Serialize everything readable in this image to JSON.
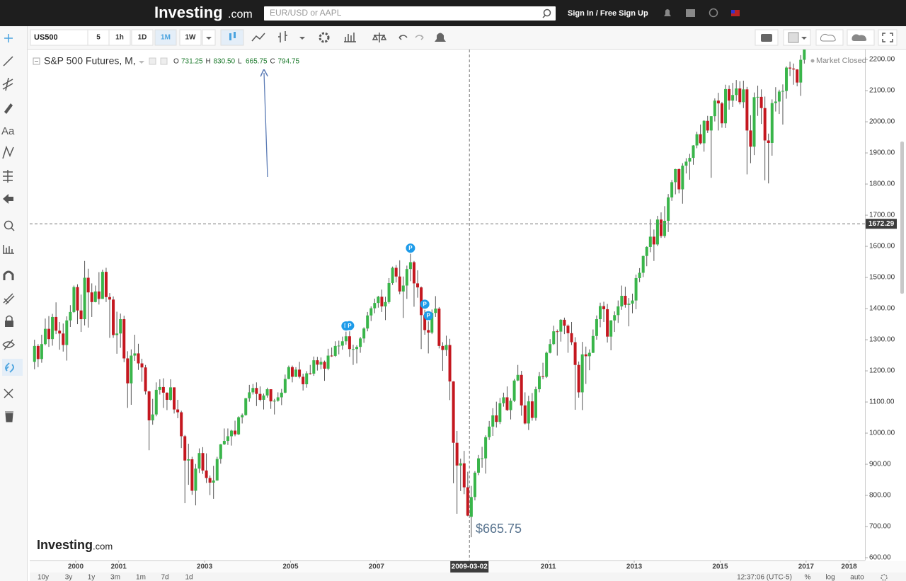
{
  "header": {
    "logo": "Investing",
    "logo_suffix": ".com",
    "search_placeholder": "EUR/USD or AAPL",
    "sign_in": "Sign In / Free Sign Up"
  },
  "toolbar": {
    "symbol": "US500",
    "intervals": [
      "5",
      "1h",
      "1D",
      "1M",
      "1W"
    ],
    "selected_interval": "1M"
  },
  "sidebar": {
    "text_tool": "Aa"
  },
  "chart_data": {
    "type": "candlestick",
    "title": "S&P 500 Futures, M,",
    "ohlc_legend": [
      {
        "key": "O",
        "value": "731.25"
      },
      {
        "key": "H",
        "value": "830.50"
      },
      {
        "key": "L",
        "value": "665.75"
      },
      {
        "key": "C",
        "value": "794.75"
      }
    ],
    "status": "Market Closed",
    "watermark": {
      "brand": "Investing",
      "suffix": ".com"
    },
    "up_color": "#39b54a",
    "down_color": "#c4171f",
    "grid": false,
    "x": [
      "1999-01",
      "1999-02",
      "1999-03",
      "1999-04",
      "1999-05",
      "1999-06",
      "1999-07",
      "1999-08",
      "1999-09",
      "1999-10",
      "1999-11",
      "1999-12",
      "2000-01",
      "2000-02",
      "2000-03",
      "2000-04",
      "2000-05",
      "2000-06",
      "2000-07",
      "2000-08",
      "2000-09",
      "2000-10",
      "2000-11",
      "2000-12",
      "2001-01",
      "2001-02",
      "2001-03",
      "2001-04",
      "2001-05",
      "2001-06",
      "2001-07",
      "2001-08",
      "2001-09",
      "2001-10",
      "2001-11",
      "2001-12",
      "2002-01",
      "2002-02",
      "2002-03",
      "2002-04",
      "2002-05",
      "2002-06",
      "2002-07",
      "2002-08",
      "2002-09",
      "2002-10",
      "2002-11",
      "2002-12",
      "2003-01",
      "2003-02",
      "2003-03",
      "2003-04",
      "2003-05",
      "2003-06",
      "2003-07",
      "2003-08",
      "2003-09",
      "2003-10",
      "2003-11",
      "2003-12",
      "2004-01",
      "2004-02",
      "2004-03",
      "2004-04",
      "2004-05",
      "2004-06",
      "2004-07",
      "2004-08",
      "2004-09",
      "2004-10",
      "2004-11",
      "2004-12",
      "2005-01",
      "2005-02",
      "2005-03",
      "2005-04",
      "2005-05",
      "2005-06",
      "2005-07",
      "2005-08",
      "2005-09",
      "2005-10",
      "2005-11",
      "2005-12",
      "2006-01",
      "2006-02",
      "2006-03",
      "2006-04",
      "2006-05",
      "2006-06",
      "2006-07",
      "2006-08",
      "2006-09",
      "2006-10",
      "2006-11",
      "2006-12",
      "2007-01",
      "2007-02",
      "2007-03",
      "2007-04",
      "2007-05",
      "2007-06",
      "2007-07",
      "2007-08",
      "2007-09",
      "2007-10",
      "2007-11",
      "2007-12",
      "2008-01",
      "2008-02",
      "2008-03",
      "2008-04",
      "2008-05",
      "2008-06",
      "2008-07",
      "2008-08",
      "2008-09",
      "2008-10",
      "2008-11",
      "2008-12",
      "2009-01",
      "2009-02",
      "2009-03",
      "2009-04",
      "2009-05",
      "2009-06",
      "2009-07",
      "2009-08",
      "2009-09",
      "2009-10",
      "2009-11",
      "2009-12",
      "2010-01",
      "2010-02",
      "2010-03",
      "2010-04",
      "2010-05",
      "2010-06",
      "2010-07",
      "2010-08",
      "2010-09",
      "2010-10",
      "2010-11",
      "2010-12",
      "2011-01",
      "2011-02",
      "2011-03",
      "2011-04",
      "2011-05",
      "2011-06",
      "2011-07",
      "2011-08",
      "2011-09",
      "2011-10",
      "2011-11",
      "2011-12",
      "2012-01",
      "2012-02",
      "2012-03",
      "2012-04",
      "2012-05",
      "2012-06",
      "2012-07",
      "2012-08",
      "2012-09",
      "2012-10",
      "2012-11",
      "2012-12",
      "2013-01",
      "2013-02",
      "2013-03",
      "2013-04",
      "2013-05",
      "2013-06",
      "2013-07",
      "2013-08",
      "2013-09",
      "2013-10",
      "2013-11",
      "2013-12",
      "2014-01",
      "2014-02",
      "2014-03",
      "2014-04",
      "2014-05",
      "2014-06",
      "2014-07",
      "2014-08",
      "2014-09",
      "2014-10",
      "2014-11",
      "2014-12",
      "2015-01",
      "2015-02",
      "2015-03",
      "2015-04",
      "2015-05",
      "2015-06",
      "2015-07",
      "2015-08",
      "2015-09",
      "2015-10",
      "2015-11",
      "2015-12",
      "2016-01",
      "2016-02",
      "2016-03",
      "2016-04",
      "2016-05",
      "2016-06",
      "2016-07",
      "2016-08",
      "2016-09",
      "2016-10",
      "2016-11",
      "2016-12"
    ],
    "open": [
      1229,
      1280,
      1238,
      1286,
      1335,
      1302,
      1373,
      1329,
      1320,
      1283,
      1362,
      1389,
      1469,
      1394,
      1366,
      1499,
      1452,
      1421,
      1455,
      1431,
      1518,
      1437,
      1429,
      1315,
      1320,
      1366,
      1240,
      1160,
      1249,
      1256,
      1224,
      1211,
      1134,
      1041,
      1060,
      1139,
      1148,
      1130,
      1107,
      1147,
      1076,
      1067,
      990,
      912,
      916,
      815,
      886,
      936,
      880,
      856,
      841,
      848,
      917,
      964,
      975,
      990,
      1008,
      996,
      1051,
      1058,
      1112,
      1131,
      1145,
      1126,
      1107,
      1121,
      1141,
      1102,
      1104,
      1115,
      1130,
      1174,
      1212,
      1181,
      1204,
      1181,
      1157,
      1192,
      1191,
      1234,
      1220,
      1229,
      1207,
      1249,
      1248,
      1280,
      1281,
      1295,
      1311,
      1270,
      1270,
      1277,
      1304,
      1336,
      1378,
      1401,
      1418,
      1438,
      1407,
      1421,
      1482,
      1531,
      1503,
      1455,
      1474,
      1527,
      1549,
      1481,
      1468,
      1379,
      1331,
      1323,
      1386,
      1400,
      1280,
      1267,
      1283,
      1166,
      969,
      896,
      903,
      826,
      731.25,
      795,
      873,
      919,
      919,
      987,
      1021,
      1057,
      1036,
      1096,
      1115,
      1074,
      1104,
      1169,
      1187,
      1089,
      1031,
      1102,
      1049,
      1141,
      1183,
      1181,
      1258,
      1286,
      1327,
      1326,
      1364,
      1345,
      1321,
      1292,
      1219,
      1131,
      1253,
      1247,
      1258,
      1312,
      1366,
      1408,
      1398,
      1310,
      1362,
      1379,
      1407,
      1441,
      1412,
      1416,
      1426,
      1498,
      1515,
      1569,
      1598,
      1631,
      1606,
      1686,
      1633,
      1682,
      1757,
      1806,
      1848,
      1783,
      1859,
      1872,
      1884,
      1924,
      1960,
      1931,
      2003,
      1972,
      2018,
      2068,
      2059,
      1995,
      2105,
      2068,
      2086,
      2107,
      2063,
      2104,
      1972,
      1920,
      2079,
      2080,
      2044,
      1940,
      1932,
      2060,
      2065,
      2097,
      2099,
      2174,
      2171,
      2168,
      2126,
      2199
    ],
    "high": [
      1300,
      1286,
      1316,
      1368,
      1376,
      1383,
      1420,
      1357,
      1352,
      1375,
      1411,
      1474,
      1478,
      1445,
      1553,
      1528,
      1481,
      1474,
      1517,
      1525,
      1531,
      1450,
      1439,
      1390,
      1384,
      1377,
      1263,
      1269,
      1316,
      1287,
      1239,
      1219,
      1136,
      1110,
      1163,
      1173,
      1176,
      1131,
      1173,
      1147,
      1107,
      1072,
      994,
      966,
      924,
      901,
      951,
      955,
      935,
      864,
      895,
      924,
      965,
      1015,
      1015,
      1011,
      1040,
      1054,
      1063,
      1113,
      1155,
      1158,
      1163,
      1150,
      1127,
      1146,
      1141,
      1110,
      1131,
      1142,
      1188,
      1217,
      1217,
      1212,
      1229,
      1191,
      1199,
      1219,
      1246,
      1245,
      1243,
      1233,
      1271,
      1275,
      1295,
      1297,
      1310,
      1326,
      1327,
      1284,
      1282,
      1309,
      1340,
      1389,
      1407,
      1432,
      1441,
      1461,
      1438,
      1498,
      1535,
      1540,
      1555,
      1503,
      1538,
      1576,
      1553,
      1523,
      1471,
      1396,
      1359,
      1397,
      1440,
      1405,
      1292,
      1313,
      1303,
      1167,
      1007,
      918,
      943,
      876,
      830.5,
      878,
      930,
      956,
      993,
      1039,
      1080,
      1101,
      1113,
      1130,
      1150,
      1112,
      1174,
      1219,
      1200,
      1131,
      1120,
      1129,
      1149,
      1196,
      1226,
      1262,
      1302,
      1345,
      1333,
      1366,
      1371,
      1349,
      1357,
      1308,
      1230,
      1293,
      1278,
      1269,
      1333,
      1378,
      1419,
      1422,
      1415,
      1363,
      1391,
      1426,
      1474,
      1470,
      1434,
      1448,
      1509,
      1530,
      1570,
      1600,
      1687,
      1654,
      1698,
      1709,
      1729,
      1768,
      1813,
      1849,
      1850,
      1867,
      1883,
      1897,
      1925,
      1968,
      1991,
      2005,
      2019,
      2018,
      2075,
      2093,
      2064,
      2119,
      2117,
      2125,
      2134,
      2130,
      2132,
      2112,
      2021,
      2094,
      2116,
      2104,
      2081,
      1962,
      2072,
      2111,
      2103,
      2120,
      2178,
      2193,
      2187,
      2169,
      2214,
      2277
    ],
    "low": [
      1205,
      1212,
      1226,
      1282,
      1277,
      1281,
      1318,
      1268,
      1262,
      1233,
      1341,
      1386,
      1350,
      1325,
      1346,
      1339,
      1373,
      1420,
      1413,
      1431,
      1421,
      1306,
      1306,
      1255,
      1274,
      1228,
      1081,
      1091,
      1232,
      1203,
      1165,
      1124,
      945,
      1027,
      1054,
      1124,
      1081,
      1074,
      1104,
      1063,
      1048,
      952,
      775,
      834,
      802,
      768,
      872,
      869,
      840,
      801,
      789,
      847,
      902,
      962,
      962,
      960,
      990,
      994,
      1031,
      1056,
      1101,
      1124,
      1087,
      1102,
      1076,
      1114,
      1078,
      1060,
      1101,
      1090,
      1128,
      1173,
      1163,
      1180,
      1176,
      1137,
      1146,
      1188,
      1184,
      1201,
      1205,
      1168,
      1202,
      1245,
      1245,
      1253,
      1268,
      1284,
      1245,
      1219,
      1224,
      1258,
      1290,
      1327,
      1360,
      1385,
      1403,
      1389,
      1363,
      1416,
      1476,
      1484,
      1446,
      1370,
      1431,
      1488,
      1406,
      1435,
      1270,
      1316,
      1256,
      1318,
      1373,
      1272,
      1200,
      1248,
      1106,
      839,
      741,
      814,
      804,
      733,
      665.75,
      784,
      865,
      889,
      870,
      978,
      991,
      1018,
      1029,
      1085,
      1071,
      1044,
      1100,
      1167,
      1056,
      1028,
      1010,
      1040,
      1040,
      1131,
      1173,
      1177,
      1256,
      1283,
      1249,
      1294,
      1318,
      1258,
      1283,
      1075,
      1114,
      1074,
      1158,
      1202,
      1257,
      1300,
      1340,
      1357,
      1291,
      1266,
      1325,
      1354,
      1396,
      1403,
      1343,
      1385,
      1398,
      1485,
      1501,
      1536,
      1581,
      1553,
      1601,
      1627,
      1627,
      1646,
      1746,
      1767,
      1770,
      1737,
      1834,
      1814,
      1862,
      1915,
      1927,
      1904,
      1964,
      1820,
      2001,
      1972,
      1981,
      1980,
      2039,
      2048,
      2067,
      2056,
      2044,
      1831,
      1867,
      1893,
      2019,
      1993,
      1812,
      1802,
      1891,
      2033,
      2025,
      1991,
      2074,
      2147,
      2119,
      2114,
      2083,
      2187
    ],
    "close": [
      1280,
      1238,
      1286,
      1335,
      1302,
      1373,
      1329,
      1320,
      1283,
      1362,
      1389,
      1469,
      1394,
      1366,
      1499,
      1452,
      1421,
      1455,
      1431,
      1518,
      1437,
      1429,
      1315,
      1320,
      1366,
      1240,
      1160,
      1249,
      1256,
      1224,
      1211,
      1134,
      1041,
      1060,
      1139,
      1148,
      1130,
      1107,
      1147,
      1076,
      1067,
      990,
      912,
      916,
      815,
      886,
      936,
      880,
      856,
      841,
      848,
      917,
      964,
      975,
      990,
      1008,
      996,
      1051,
      1058,
      1112,
      1131,
      1145,
      1126,
      1107,
      1121,
      1141,
      1102,
      1104,
      1115,
      1130,
      1174,
      1212,
      1181,
      1204,
      1181,
      1157,
      1192,
      1191,
      1234,
      1220,
      1229,
      1207,
      1249,
      1248,
      1280,
      1281,
      1295,
      1311,
      1270,
      1270,
      1277,
      1304,
      1336,
      1378,
      1401,
      1418,
      1438,
      1407,
      1421,
      1482,
      1531,
      1503,
      1455,
      1474,
      1527,
      1549,
      1481,
      1468,
      1379,
      1331,
      1323,
      1386,
      1400,
      1280,
      1267,
      1283,
      1166,
      969,
      896,
      903,
      826,
      735,
      794.75,
      873,
      919,
      919,
      987,
      1021,
      1057,
      1036,
      1096,
      1115,
      1074,
      1104,
      1169,
      1187,
      1089,
      1031,
      1102,
      1049,
      1141,
      1183,
      1181,
      1258,
      1286,
      1327,
      1326,
      1364,
      1345,
      1321,
      1292,
      1219,
      1131,
      1253,
      1247,
      1258,
      1312,
      1366,
      1408,
      1398,
      1310,
      1362,
      1379,
      1407,
      1441,
      1412,
      1416,
      1426,
      1498,
      1515,
      1569,
      1598,
      1631,
      1606,
      1686,
      1633,
      1682,
      1757,
      1806,
      1848,
      1783,
      1859,
      1872,
      1884,
      1924,
      1960,
      1931,
      2003,
      1972,
      2018,
      2068,
      2059,
      1995,
      2105,
      2068,
      2086,
      2107,
      2063,
      2104,
      1972,
      1920,
      2079,
      2080,
      2044,
      1940,
      1932,
      2060,
      2065,
      2097,
      2099,
      2174,
      2171,
      2168,
      2126,
      2199,
      2239
    ],
    "xlim": [
      1998.93,
      2018.37
    ],
    "xticks": [
      2000,
      2001,
      2003,
      2005,
      2007,
      2011,
      2013,
      2015,
      2017,
      2018
    ],
    "ylim": [
      591,
      2232
    ],
    "yticks": [
      {
        "value": 600,
        "label": "600.00"
      },
      {
        "value": 700,
        "label": "700.00"
      },
      {
        "value": 800,
        "label": "800.00"
      },
      {
        "value": 900,
        "label": "900.00"
      },
      {
        "value": 1000,
        "label": "1000.00"
      },
      {
        "value": 1100,
        "label": "1100.00"
      },
      {
        "value": 1200,
        "label": "1200.00"
      },
      {
        "value": 1300,
        "label": "1300.00"
      },
      {
        "value": 1400,
        "label": "1400.00"
      },
      {
        "value": 1500,
        "label": "1500.00"
      },
      {
        "value": 1600,
        "label": "1600.00"
      },
      {
        "value": 1700,
        "label": "1700.00"
      },
      {
        "value": 1800,
        "label": "1800.00"
      },
      {
        "value": 1900,
        "label": "1900.00"
      },
      {
        "value": 2000,
        "label": "2000.00"
      },
      {
        "value": 2100,
        "label": "2100.00"
      },
      {
        "value": 2200,
        "label": "2200.00"
      }
    ],
    "crosshair": {
      "x": "2009-03-02",
      "y": 1672.29
    },
    "markers": [
      {
        "x": "2006-04",
        "text": "P"
      },
      {
        "x": "2006-05",
        "text": "P"
      },
      {
        "x": "2007-10",
        "text": "P"
      },
      {
        "x": "2008-02",
        "text": "P"
      },
      {
        "x": "2008-03",
        "text": "P"
      }
    ],
    "annotation": "$665.75"
  },
  "footer": {
    "ranges": [
      "10y",
      "3y",
      "1y",
      "3m",
      "1m",
      "7d",
      "1d"
    ],
    "time": "12:37:06 (UTC-5)",
    "options": [
      "%",
      "log",
      "auto"
    ]
  }
}
